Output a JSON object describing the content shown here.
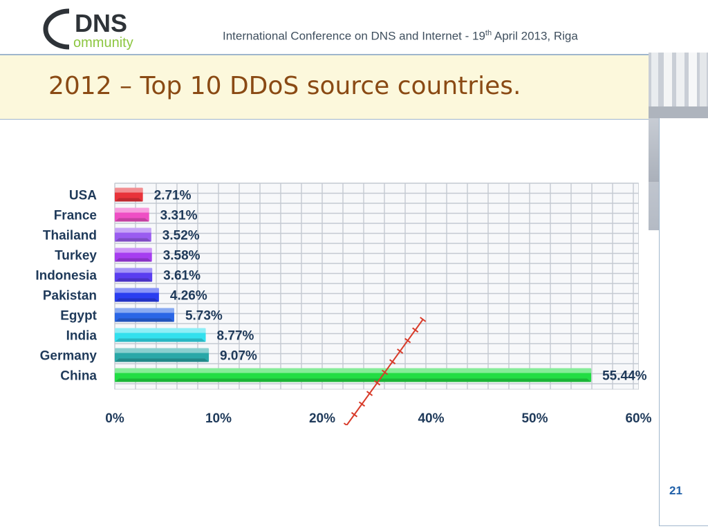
{
  "header": {
    "logo_main": "DNS",
    "logo_sub": "ommunity",
    "conference_before": "International Conference on DNS and Internet  - 19",
    "conference_sup": "th",
    "conference_after": " April 2013, Riga"
  },
  "slide": {
    "title": "2012 – Top 10 DDoS source countries.",
    "page_number": "21"
  },
  "colors": {
    "title": "#8a4a14",
    "page_number": "#1f5fa8",
    "title_band": "#fcf8dc"
  },
  "chart_data": {
    "type": "bar",
    "orientation": "horizontal",
    "title": "",
    "xlabel": "",
    "ylabel": "",
    "xlim": [
      0,
      60
    ],
    "grid": true,
    "categories": [
      "USA",
      "France",
      "Thailand",
      "Turkey",
      "Indonesia",
      "Pakistan",
      "Egypt",
      "India",
      "Germany",
      "China"
    ],
    "values": [
      2.71,
      3.31,
      3.52,
      3.58,
      3.61,
      4.26,
      5.73,
      8.77,
      9.07,
      55.44
    ],
    "value_labels": [
      "2.71%",
      "3.31%",
      "3.52%",
      "3.58%",
      "3.61%",
      "4.26%",
      "5.73%",
      "8.77%",
      "9.07%",
      "55.44%"
    ],
    "bar_colors": [
      "#e8333a",
      "#ee4fc4",
      "#9a5cf0",
      "#a63ef0",
      "#5a3ef0",
      "#2a3ef0",
      "#2a66e6",
      "#33e0ee",
      "#2aa8a8",
      "#22dd44"
    ],
    "x_ticks": [
      0,
      10,
      20,
      40,
      50,
      60
    ],
    "x_tick_labels": [
      "0%",
      "10%",
      "20%",
      "40%",
      "50%",
      "60%"
    ],
    "axis_break": "between 20% and 40%"
  }
}
